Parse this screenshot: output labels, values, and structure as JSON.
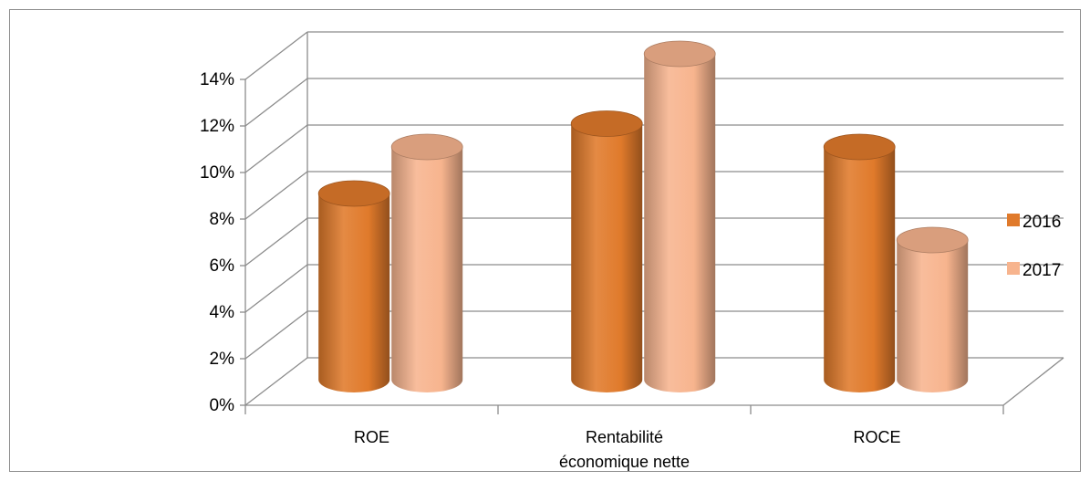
{
  "chart_data": {
    "type": "bar",
    "categories": [
      "ROE",
      "Rentabilité économique nette",
      "ROCE"
    ],
    "category_label_lines": [
      [
        "ROE"
      ],
      [
        "Rentabilité",
        "économique nette"
      ],
      [
        "ROCE"
      ]
    ],
    "series": [
      {
        "name": "2016",
        "values": [
          8,
          11,
          10
        ],
        "color": "#E07A2B"
      },
      {
        "name": "2017",
        "values": [
          10,
          14,
          6
        ],
        "color": "#F7B48E"
      }
    ],
    "ylim": [
      0,
      14
    ],
    "yticks": [
      0,
      2,
      4,
      6,
      8,
      10,
      12,
      14
    ],
    "ytick_labels": [
      "0%",
      "2%",
      "4%",
      "6%",
      "8%",
      "10%",
      "12%",
      "14%"
    ],
    "grid": true,
    "legend": "right",
    "style": "3d-cylinder"
  }
}
